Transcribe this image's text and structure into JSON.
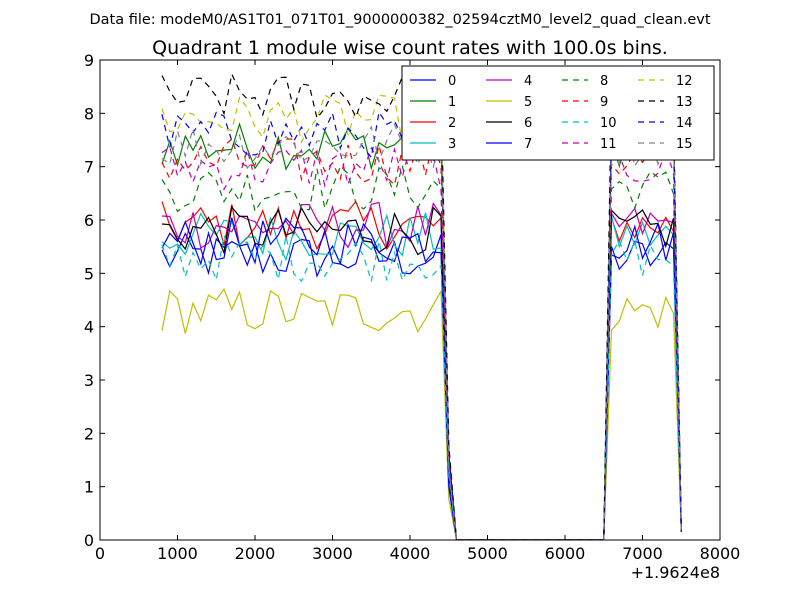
{
  "header": {
    "data_file": "Data file: modeM0/AS1T01_071T01_9000000382_02594cztM0_level2_quad_clean.evt"
  },
  "chart_data": {
    "type": "line",
    "title": "Quadrant 1 module wise count rates with 100.0s bins.",
    "xlabel": "",
    "ylabel": "",
    "x_offset_label": "+1.9624e8",
    "xlim": [
      0,
      8000
    ],
    "ylim": [
      0,
      9
    ],
    "xticks": [
      "0",
      "1000",
      "2000",
      "3000",
      "4000",
      "5000",
      "6000",
      "7000",
      "8000"
    ],
    "yticks": [
      "0",
      "1",
      "2",
      "3",
      "4",
      "5",
      "6",
      "7",
      "8",
      "9"
    ],
    "legend_position": "top-right",
    "legend_columns": 4,
    "gti": [
      [
        800,
        4400
      ],
      [
        6600,
        7400
      ]
    ],
    "transition_times": [
      4400,
      4500,
      4600,
      6500,
      6600,
      7400,
      7500
    ],
    "series": [
      {
        "name": "0",
        "color": "#0000ff",
        "style": "solid",
        "level": 5.3
      },
      {
        "name": "1",
        "color": "#008000",
        "style": "solid",
        "level": 7.4
      },
      {
        "name": "2",
        "color": "#ff0000",
        "style": "solid",
        "level": 5.9
      },
      {
        "name": "3",
        "color": "#00bfbf",
        "style": "solid",
        "level": 5.7
      },
      {
        "name": "4",
        "color": "#bf00bf",
        "style": "solid",
        "level": 5.9
      },
      {
        "name": "5",
        "color": "#bfbf00",
        "style": "solid",
        "level": 4.3
      },
      {
        "name": "6",
        "color": "#000000",
        "style": "solid",
        "level": 5.8
      },
      {
        "name": "7",
        "color": "#0000ff",
        "style": "solid",
        "level": 5.6
      },
      {
        "name": "8",
        "color": "#008000",
        "style": "dashed",
        "level": 6.6
      },
      {
        "name": "9",
        "color": "#ff0000",
        "style": "dashed",
        "level": 7.1
      },
      {
        "name": "10",
        "color": "#00bfbf",
        "style": "dashed",
        "level": 5.3
      },
      {
        "name": "11",
        "color": "#bf00bf",
        "style": "dashed",
        "level": 7.0
      },
      {
        "name": "12",
        "color": "#bfbf00",
        "style": "dashed",
        "level": 7.9
      },
      {
        "name": "13",
        "color": "#000000",
        "style": "dashed",
        "level": 8.3
      },
      {
        "name": "14",
        "color": "#0000ff",
        "style": "dashed",
        "level": 7.6
      },
      {
        "name": "15",
        "color": "#808080",
        "style": "dashed",
        "level": 7.4
      }
    ]
  }
}
